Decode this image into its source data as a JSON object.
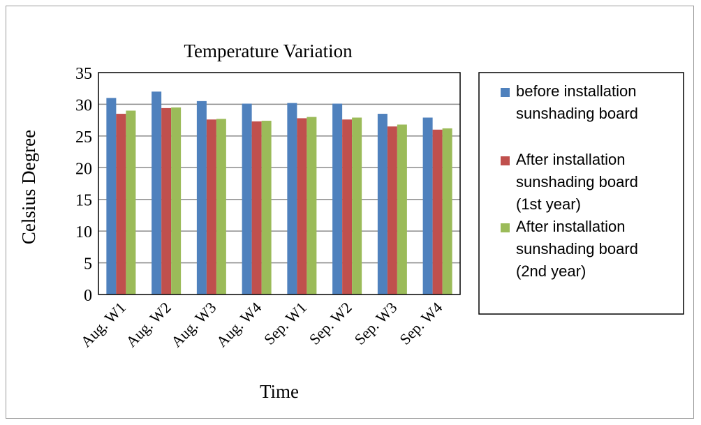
{
  "chart_data": {
    "type": "bar",
    "title": "Temperature Variation",
    "xlabel": "Time",
    "ylabel": "Celsius Degree",
    "ylim": [
      0,
      35
    ],
    "yticks": [
      0,
      5,
      10,
      15,
      20,
      25,
      30,
      35
    ],
    "grid": true,
    "legend_position": "right",
    "categories": [
      "Aug. W1",
      "Aug. W2",
      "Aug. W3",
      "Aug. W4",
      "Sep. W1",
      "Sep. W2",
      "Sep. W3",
      "Sep. W4"
    ],
    "series": [
      {
        "name": "before installation sunshading board",
        "legend_lines": [
          "before installation",
          "sunshading board"
        ],
        "color": "#4F81BD",
        "values": [
          31.0,
          32.0,
          30.5,
          30.1,
          30.2,
          30.1,
          28.5,
          27.9
        ]
      },
      {
        "name": "After installation sunshading board (1st year)",
        "legend_lines": [
          "After installation",
          "sunshading board",
          "(1st year)"
        ],
        "color": "#C0504D",
        "values": [
          28.5,
          29.4,
          27.6,
          27.3,
          27.8,
          27.6,
          26.5,
          26.0
        ]
      },
      {
        "name": "After installation sunshading board (2nd year)",
        "legend_lines": [
          "After installation",
          "sunshading board",
          "(2nd year)"
        ],
        "color": "#9BBB59",
        "values": [
          29.0,
          29.5,
          27.7,
          27.4,
          28.0,
          27.9,
          26.8,
          26.2
        ]
      }
    ]
  }
}
